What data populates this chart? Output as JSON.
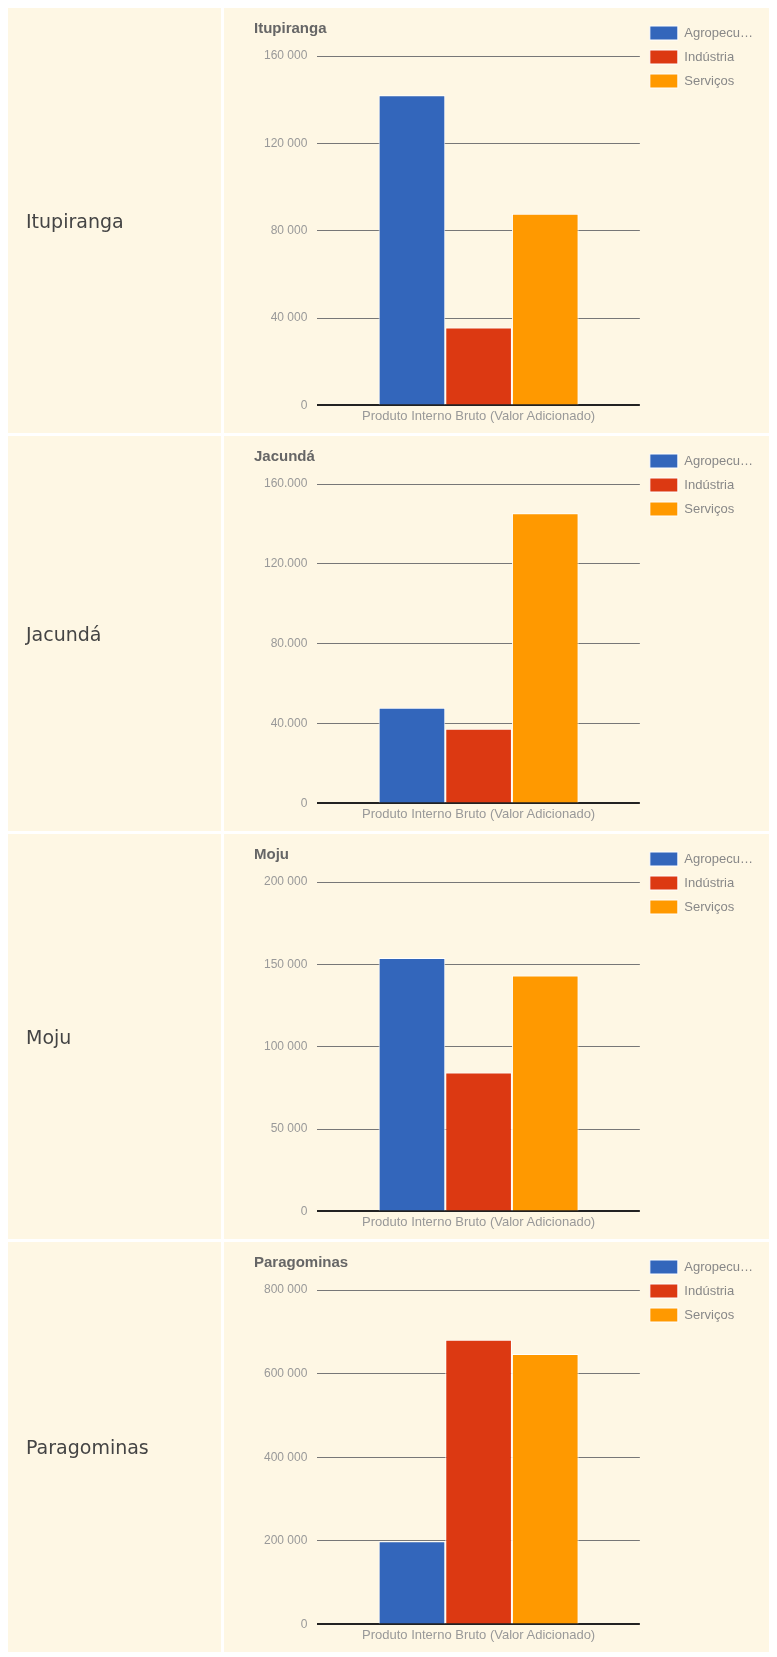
{
  "chart_data": [
    {
      "type": "bar",
      "title": "Itupiranga",
      "annotations": [
        "Itupiranga"
      ],
      "categories": [
        "Produto Interno Bruto (Valor Adicionado)"
      ],
      "series": [
        {
          "name": "Agropecu…",
          "color": "#3366bb",
          "values": [
            142000
          ]
        },
        {
          "name": "Indústria",
          "color": "#dc3912",
          "values": [
            35700
          ]
        },
        {
          "name": "Serviços",
          "color": "#ff9900",
          "values": [
            87800
          ]
        }
      ],
      "ylim": [
        0,
        160000
      ],
      "yticks": [
        {
          "value": 0,
          "label": "0"
        },
        {
          "value": 40000,
          "label": "40 000"
        },
        {
          "value": 80000,
          "label": "80 000"
        },
        {
          "value": 120000,
          "label": "120 000"
        },
        {
          "value": 160000,
          "label": "160 000"
        }
      ],
      "grid": "y",
      "legend": "top right"
    },
    {
      "type": "bar",
      "title": "Jacundá",
      "annotations": [
        "Jacundá"
      ],
      "categories": [
        "Produto Interno Bruto (Valor Adicionado)"
      ],
      "series": [
        {
          "name": "Agropecu…",
          "color": "#3366bb",
          "values": [
            47900
          ]
        },
        {
          "name": "Indústria",
          "color": "#dc3912",
          "values": [
            37400
          ]
        },
        {
          "name": "Serviços",
          "color": "#ff9900",
          "values": [
            145300
          ]
        }
      ],
      "ylim": [
        0,
        160000
      ],
      "yticks": [
        {
          "value": 0,
          "label": "0"
        },
        {
          "value": 40000,
          "label": "40.000"
        },
        {
          "value": 80000,
          "label": "80.000"
        },
        {
          "value": 120000,
          "label": "120.000"
        },
        {
          "value": 160000,
          "label": "160.000"
        }
      ],
      "grid": "y",
      "legend": "top right"
    },
    {
      "type": "bar",
      "title": "Moju",
      "annotations": [
        "Moju"
      ],
      "categories": [
        "Produto Interno Bruto (Valor Adicionado)"
      ],
      "series": [
        {
          "name": "Agropecu…",
          "color": "#3366bb",
          "values": [
            153900
          ]
        },
        {
          "name": "Indústria",
          "color": "#dc3912",
          "values": [
            84300
          ]
        },
        {
          "name": "Serviços",
          "color": "#ff9900",
          "values": [
            143300
          ]
        }
      ],
      "ylim": [
        0,
        200000
      ],
      "yticks": [
        {
          "value": 0,
          "label": "0"
        },
        {
          "value": 50000,
          "label": "50 000"
        },
        {
          "value": 100000,
          "label": "100 000"
        },
        {
          "value": 150000,
          "label": "150 000"
        },
        {
          "value": 200000,
          "label": "200 000"
        }
      ],
      "grid": "y",
      "legend": "top right"
    },
    {
      "type": "bar",
      "title": "Paragominas",
      "annotations": [
        "Paragominas"
      ],
      "categories": [
        "Produto Interno Bruto (Valor Adicionado)"
      ],
      "series": [
        {
          "name": "Agropecu…",
          "color": "#3366bb",
          "values": [
            199000
          ]
        },
        {
          "name": "Indústria",
          "color": "#dc3912",
          "values": [
            681000
          ]
        },
        {
          "name": "Serviços",
          "color": "#ff9900",
          "values": [
            647000
          ]
        }
      ],
      "ylim": [
        0,
        800000
      ],
      "yticks": [
        {
          "value": 0,
          "label": "0"
        },
        {
          "value": 200000,
          "label": "200 000"
        },
        {
          "value": 400000,
          "label": "400 000"
        },
        {
          "value": 600000,
          "label": "600 000"
        },
        {
          "value": 800000,
          "label": "800 000"
        }
      ],
      "grid": "y",
      "legend": "top right"
    }
  ]
}
